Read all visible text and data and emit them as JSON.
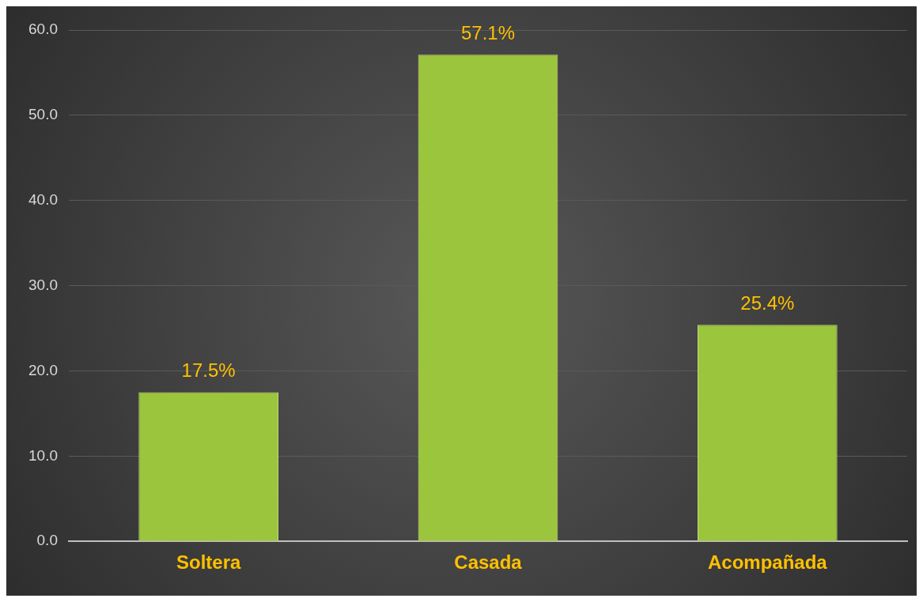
{
  "chart_data": {
    "type": "bar",
    "categories": [
      "Soltera",
      "Casada",
      "Acompañada"
    ],
    "values": [
      17.5,
      57.1,
      25.4
    ],
    "value_labels": [
      "17.5%",
      "57.1%",
      "25.4%"
    ],
    "color": "#9bc53d",
    "ylim": [
      0,
      60
    ],
    "yticks": [
      {
        "value": 0,
        "label": "0.0"
      },
      {
        "value": 10,
        "label": "10.0"
      },
      {
        "value": 20,
        "label": "20.0"
      },
      {
        "value": 30,
        "label": "30.0"
      },
      {
        "value": 40,
        "label": "40.0"
      },
      {
        "value": 50,
        "label": "50.0"
      },
      {
        "value": 60,
        "label": "60.0"
      }
    ],
    "grid": "y",
    "legend": false
  }
}
